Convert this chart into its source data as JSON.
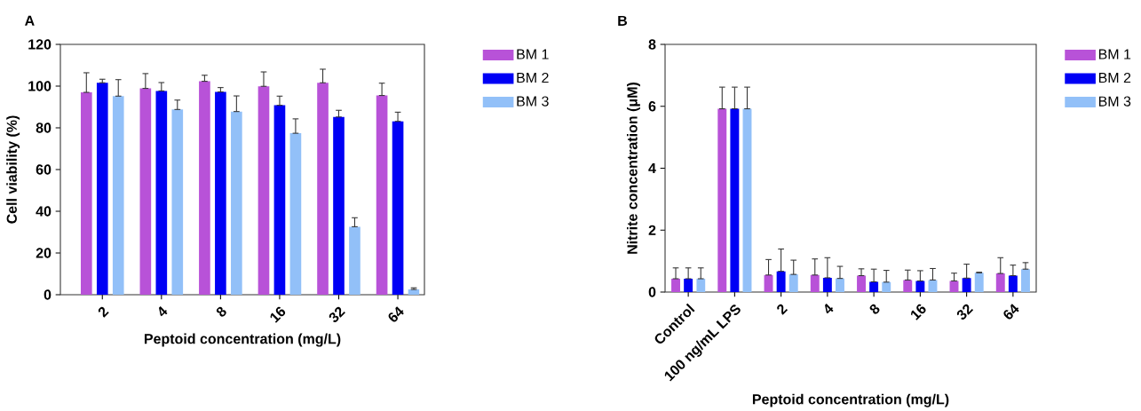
{
  "chart_data": [
    {
      "type": "bar",
      "title": "A",
      "xlabel": "Peptoid concentration (mg/L)",
      "ylabel": "Cell viability (%)",
      "categories": [
        "2",
        "4",
        "8",
        "16",
        "32",
        "64"
      ],
      "ylim": [
        0,
        120
      ],
      "yticks": [
        0,
        20,
        40,
        60,
        80,
        100,
        120
      ],
      "legend": "right",
      "series": [
        {
          "name": "BM 1",
          "color": "#b852d8",
          "values": [
            97,
            98.9,
            102.3,
            99.9,
            101.6,
            95.5
          ],
          "errors": [
            [
              97,
              106.4
            ],
            [
              98.9,
              106
            ],
            [
              102.3,
              105.2
            ],
            [
              99.9,
              106.8
            ],
            [
              101.6,
              108.1
            ],
            [
              95.5,
              101.4
            ]
          ]
        },
        {
          "name": "BM 2",
          "color": "#0000f5",
          "values": [
            101.6,
            97.7,
            97.2,
            90.8,
            85.2,
            83.1
          ],
          "errors": [
            [
              101.6,
              103.3
            ],
            [
              97.7,
              101.7
            ],
            [
              97.2,
              99.3
            ],
            [
              90.8,
              95.2
            ],
            [
              85.2,
              88.4
            ],
            [
              83.1,
              87.5
            ]
          ]
        },
        {
          "name": "BM 3",
          "color": "#92c0f8",
          "values": [
            95.2,
            88.8,
            87.8,
            77.4,
            32.6,
            2.5
          ],
          "errors": [
            [
              95.2,
              103.1
            ],
            [
              88.8,
              93.3
            ],
            [
              87.8,
              95.3
            ],
            [
              77.4,
              84.3
            ],
            [
              32.6,
              36.9
            ],
            [
              2.5,
              3.3
            ]
          ]
        }
      ]
    },
    {
      "type": "bar",
      "title": "B",
      "xlabel": "Peptoid concentration (mg/L)",
      "ylabel": "Nitrite concentration (μM)",
      "categories": [
        "Control",
        "100 ng/mL LPS",
        "2",
        "4",
        "8",
        "16",
        "32",
        "64"
      ],
      "ylim": [
        0,
        8
      ],
      "yticks": [
        0,
        2,
        4,
        6,
        8
      ],
      "legend": "right",
      "series": [
        {
          "name": "BM 1",
          "color": "#b852d8",
          "values": [
            0.43,
            5.92,
            0.55,
            0.55,
            0.53,
            0.39,
            0.36,
            0.6
          ],
          "errors": [
            [
              0.43,
              0.78
            ],
            [
              5.92,
              6.62
            ],
            [
              0.55,
              1.05
            ],
            [
              0.55,
              1.07
            ],
            [
              0.53,
              0.75
            ],
            [
              0.39,
              0.71
            ],
            [
              0.36,
              0.61
            ],
            [
              0.6,
              1.11
            ]
          ]
        },
        {
          "name": "BM 2",
          "color": "#0000f5",
          "values": [
            0.43,
            5.92,
            0.67,
            0.46,
            0.33,
            0.36,
            0.45,
            0.53
          ],
          "errors": [
            [
              0.43,
              0.78
            ],
            [
              5.92,
              6.62
            ],
            [
              0.67,
              1.39
            ],
            [
              0.46,
              1.11
            ],
            [
              0.33,
              0.74
            ],
            [
              0.36,
              0.69
            ],
            [
              0.45,
              0.9
            ],
            [
              0.53,
              0.87
            ]
          ]
        },
        {
          "name": "BM 3",
          "color": "#92c0f8",
          "values": [
            0.43,
            5.92,
            0.57,
            0.44,
            0.32,
            0.39,
            0.62,
            0.74
          ],
          "errors": [
            [
              0.43,
              0.78
            ],
            [
              5.92,
              6.62
            ],
            [
              0.57,
              1.03
            ],
            [
              0.44,
              0.83
            ],
            [
              0.32,
              0.7
            ],
            [
              0.39,
              0.76
            ],
            [
              0.62,
              0.64
            ],
            [
              0.74,
              0.95
            ]
          ]
        }
      ]
    }
  ]
}
